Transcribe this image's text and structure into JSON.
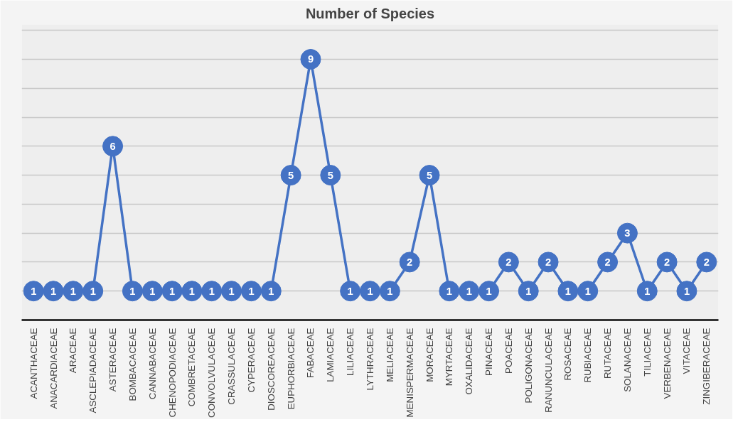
{
  "chart_data": {
    "type": "line",
    "title": "Number of Species",
    "categories": [
      "ACANTHACEAE",
      "ANACARDIACEAE",
      "ARACEAE",
      "ASCLEPIADACEAE",
      "ASTERACEAE",
      "BOMBACACEAE",
      "CANNABACEAE",
      "CHENOPODIACEAE",
      "COMBRETACEAE",
      "CONVOLVULACEAE",
      "CRASSULACEAE",
      "CYPERACEAE",
      "DIOSCOREACEAE",
      "EUPHORBIACEAE",
      "FABACEAE",
      "LAMIACEAE",
      "LILIACEAE",
      "LYTHRACEAE",
      "MELIACEAE",
      "MENISPERMACEAE",
      "MORACEAE",
      "MYRTACEAE",
      "OXALIDACEAE",
      "PINACEAE",
      "POACEAE",
      "POLIGONACEAE",
      "RANUNCULACEAE",
      "ROSACEAE",
      "RUBIACEAE",
      "RUTACEAE",
      "SOLANACEAE",
      "TILIACEAE",
      "VERBENACEAE",
      "VITACEAE",
      "ZINGIBERACEAE"
    ],
    "series": [
      {
        "color": "#4472c4",
        "values": [
          1,
          1,
          1,
          1,
          6,
          1,
          1,
          1,
          1,
          1,
          1,
          1,
          1,
          5,
          9,
          5,
          1,
          1,
          1,
          2,
          5,
          1,
          1,
          1,
          2,
          1,
          2,
          1,
          1,
          2,
          3,
          1,
          2,
          1,
          2
        ]
      }
    ],
    "ylim": [
      0,
      10.2
    ],
    "yticks": [
      {
        "value": 0,
        "label": null
      },
      {
        "value": 1,
        "label": null
      },
      {
        "value": 2,
        "label": null
      },
      {
        "value": 3,
        "label": null
      },
      {
        "value": 4,
        "label": null
      },
      {
        "value": 5,
        "label": null
      },
      {
        "value": 6,
        "label": null
      },
      {
        "value": 7,
        "label": null
      },
      {
        "value": 8,
        "label": null
      },
      {
        "value": 9,
        "label": null
      },
      {
        "value": 10,
        "label": null
      }
    ],
    "grid": "y",
    "tick_labels": "x",
    "marker": "circle",
    "line_style": "solid",
    "data_labels": true
  }
}
